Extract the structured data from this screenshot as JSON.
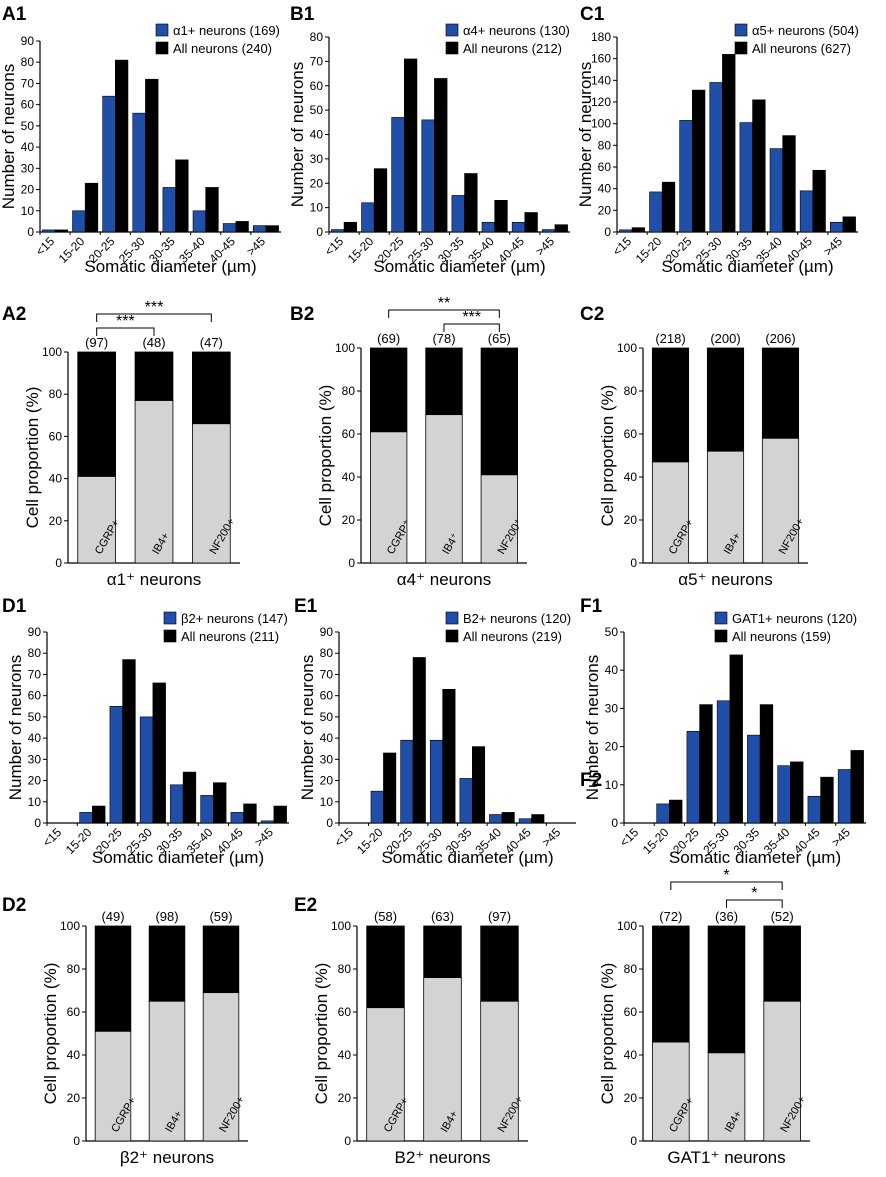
{
  "colors": {
    "subset": "#1f4fa8",
    "all": "#000000",
    "negative": "#000000",
    "positive": "#d3d3d3"
  },
  "chart_data": [
    {
      "id": "A1",
      "label": "A1",
      "type": "bar",
      "xlabel": "Somatic diameter (µm)",
      "ylabel": "Number of neurons",
      "categories": [
        "<15",
        "15-20",
        "20-25",
        "25-30",
        "30-35",
        "35-40",
        "40-45",
        ">45"
      ],
      "ylim": [
        0,
        90
      ],
      "yticks": [
        "0",
        "10",
        "20",
        "30",
        "40",
        "50",
        "60",
        "70",
        "80",
        "90"
      ],
      "ytick_values": [
        0,
        10,
        20,
        30,
        40,
        50,
        60,
        70,
        80,
        90
      ],
      "series": [
        {
          "name": "α1+ neurons (169)",
          "values": [
            1,
            10,
            64,
            56,
            21,
            10,
            4,
            3
          ]
        },
        {
          "name": "All neurons (240)",
          "values": [
            1,
            23,
            81,
            72,
            34,
            21,
            5,
            3
          ]
        }
      ]
    },
    {
      "id": "B1",
      "label": "B1",
      "type": "bar",
      "xlabel": "Somatic diameter (µm)",
      "ylabel": "Number of neurons",
      "categories": [
        "<15",
        "15-20",
        "20-25",
        "25-30",
        "30-35",
        "35-40",
        "40-45",
        ">45"
      ],
      "ylim": [
        0,
        80
      ],
      "yticks": [
        "0",
        "10",
        "20",
        "30",
        "40",
        "50",
        "60",
        "70",
        "80"
      ],
      "ytick_values": [
        0,
        10,
        20,
        30,
        40,
        50,
        60,
        70,
        80
      ],
      "series": [
        {
          "name": "α4+ neurons (130)",
          "values": [
            1,
            12,
            47,
            46,
            15,
            4,
            4,
            1
          ]
        },
        {
          "name": "All neurons (212)",
          "values": [
            4,
            26,
            71,
            63,
            24,
            13,
            8,
            3
          ]
        }
      ]
    },
    {
      "id": "C1",
      "label": "C1",
      "type": "bar",
      "xlabel": "Somatic diameter (µm)",
      "ylabel": "Number of neurons",
      "categories": [
        "<15",
        "15-20",
        "20-25",
        "25-30",
        "30-35",
        "35-40",
        "40-45",
        ">45"
      ],
      "ylim": [
        0,
        180
      ],
      "yticks": [
        "0",
        "20",
        "40",
        "60",
        "80",
        "100",
        "120",
        "140",
        "160",
        "180"
      ],
      "ytick_values": [
        0,
        20,
        40,
        60,
        80,
        100,
        120,
        140,
        160,
        180
      ],
      "series": [
        {
          "name": "α5+ neurons (504)",
          "values": [
            2,
            37,
            103,
            138,
            101,
            77,
            38,
            9
          ]
        },
        {
          "name": "All neurons (627)",
          "values": [
            4,
            46,
            131,
            164,
            122,
            89,
            57,
            14
          ]
        }
      ]
    },
    {
      "id": "A2",
      "label": "A2",
      "type": "stacked_bar",
      "xlabel": "α1⁺ neurons",
      "ylabel": "Cell proportion (%)",
      "categories": [
        "CGRP+",
        "IB4+",
        "NF200+"
      ],
      "counts": [
        "(97)",
        "(48)",
        "(47)"
      ],
      "positive_percent": [
        41,
        77,
        66
      ],
      "ylim": [
        0,
        100
      ],
      "yticks": [
        "0",
        "20",
        "40",
        "60",
        "80",
        "100"
      ],
      "ytick_values": [
        0,
        20,
        40,
        60,
        80,
        100
      ],
      "significance": [
        {
          "from": 0,
          "to": 2,
          "label": "***"
        },
        {
          "from": 0,
          "to": 1,
          "label": "***"
        }
      ]
    },
    {
      "id": "B2",
      "label": "B2",
      "type": "stacked_bar",
      "xlabel": "α4⁺ neurons",
      "ylabel": "Cell proportion (%)",
      "categories": [
        "CGRP⁺",
        "IB4⁺",
        "NF200⁺"
      ],
      "counts": [
        "(69)",
        "(78)",
        "(65)"
      ],
      "positive_percent": [
        61,
        69,
        41
      ],
      "ylim": [
        0,
        100
      ],
      "yticks": [
        "0",
        "20",
        "40",
        "60",
        "80",
        "100"
      ],
      "ytick_values": [
        0,
        20,
        40,
        60,
        80,
        100
      ],
      "significance": [
        {
          "from": 0,
          "to": 2,
          "label": "**"
        },
        {
          "from": 1,
          "to": 2,
          "label": "***"
        }
      ]
    },
    {
      "id": "C2",
      "label": "C2",
      "type": "stacked_bar",
      "xlabel": "α5⁺ neurons",
      "ylabel": "Cell proportion (%)",
      "categories": [
        "CGRP+",
        "IB4+",
        "NF200+"
      ],
      "counts": [
        "(218)",
        "(200)",
        "(206)"
      ],
      "positive_percent": [
        47,
        52,
        58
      ],
      "ylim": [
        0,
        100
      ],
      "yticks": [
        "0",
        "20",
        "40",
        "60",
        "80",
        "100"
      ],
      "ytick_values": [
        0,
        20,
        40,
        60,
        80,
        100
      ],
      "significance": []
    },
    {
      "id": "D1",
      "label": "D1",
      "type": "bar",
      "xlabel": "Somatic diameter (µm)",
      "ylabel": "Number of neurons",
      "categories": [
        "<15",
        "15-20",
        "20-25",
        "25-30",
        "30-35",
        "35-40",
        "40-45",
        ">45"
      ],
      "ylim": [
        0,
        90
      ],
      "yticks": [
        "0",
        "10",
        "20",
        "30",
        "40",
        "50",
        "60",
        "70",
        "80",
        "90"
      ],
      "ytick_values": [
        0,
        10,
        20,
        30,
        40,
        50,
        60,
        70,
        80,
        90
      ],
      "series": [
        {
          "name": "β2+ neurons (147)",
          "values": [
            0,
            5,
            55,
            50,
            18,
            13,
            5,
            1
          ]
        },
        {
          "name": "All neurons (211)",
          "values": [
            0,
            8,
            77,
            66,
            24,
            19,
            9,
            8
          ]
        }
      ]
    },
    {
      "id": "E1",
      "label": "E1",
      "type": "bar",
      "xlabel": "Somatic diameter (µm)",
      "ylabel": "Number of neurons",
      "categories": [
        "<15",
        "15-20",
        "20-25",
        "25-30",
        "30-35",
        "35-40",
        "40-45",
        ">45"
      ],
      "ylim": [
        0,
        90
      ],
      "yticks": [
        "0",
        "10",
        "20",
        "30",
        "40",
        "50",
        "60",
        "70",
        "80",
        "90"
      ],
      "ytick_values": [
        0,
        10,
        20,
        30,
        40,
        50,
        60,
        70,
        80,
        90
      ],
      "series": [
        {
          "name": "B2+ neurons (120)",
          "values": [
            0,
            15,
            39,
            39,
            21,
            4,
            2,
            0
          ]
        },
        {
          "name": "All neurons (219)",
          "values": [
            0,
            33,
            78,
            63,
            36,
            5,
            4,
            0
          ]
        }
      ]
    },
    {
      "id": "F1",
      "label": "F1",
      "type": "bar",
      "xlabel": "Somatic diameter (µm)",
      "ylabel": "Number of neurons",
      "categories": [
        "<15",
        "15-20",
        "20-25",
        "25-30",
        "30-35",
        "35-40",
        "40-45",
        ">45"
      ],
      "ylim": [
        0,
        50
      ],
      "yticks": [
        "0",
        "10",
        "20",
        "30",
        "40",
        "50"
      ],
      "ytick_values": [
        0,
        10,
        20,
        30,
        40,
        50
      ],
      "series": [
        {
          "name": "GAT1+ neurons (120)",
          "values": [
            0,
            5,
            24,
            32,
            23,
            15,
            7,
            14
          ]
        },
        {
          "name": "All neurons (159)",
          "values": [
            0,
            6,
            31,
            44,
            31,
            16,
            12,
            19
          ]
        }
      ]
    },
    {
      "id": "D2",
      "label": "D2",
      "type": "stacked_bar",
      "xlabel": "β2⁺ neurons",
      "ylabel": "Cell proportion (%)",
      "categories": [
        "CGRP+",
        "IB4+",
        "NF200+"
      ],
      "counts": [
        "(49)",
        "(98)",
        "(59)"
      ],
      "positive_percent": [
        51,
        65,
        69
      ],
      "ylim": [
        0,
        100
      ],
      "yticks": [
        "0",
        "20",
        "40",
        "60",
        "80",
        "100"
      ],
      "ytick_values": [
        0,
        20,
        40,
        60,
        80,
        100
      ],
      "significance": []
    },
    {
      "id": "E2",
      "label": "E2",
      "type": "stacked_bar",
      "xlabel": "B2⁺ neurons",
      "ylabel": "Cell proportion (%)",
      "categories": [
        "CGRP+",
        "IB4+",
        "NF200+"
      ],
      "counts": [
        "(58)",
        "(63)",
        "(97)"
      ],
      "positive_percent": [
        62,
        76,
        65
      ],
      "ylim": [
        0,
        100
      ],
      "yticks": [
        "0",
        "20",
        "40",
        "60",
        "80",
        "100"
      ],
      "ytick_values": [
        0,
        20,
        40,
        60,
        80,
        100
      ],
      "significance": []
    },
    {
      "id": "F2",
      "label": "F2",
      "type": "stacked_bar",
      "xlabel": "GAT1⁺ neurons",
      "ylabel": "Cell proportion (%)",
      "categories": [
        "CGRP+",
        "IB4+",
        "NF200+"
      ],
      "counts": [
        "(72)",
        "(36)",
        "(52)"
      ],
      "positive_percent": [
        46,
        41,
        65
      ],
      "ylim": [
        0,
        100
      ],
      "yticks": [
        "0",
        "20",
        "40",
        "60",
        "80",
        "100"
      ],
      "ytick_values": [
        0,
        20,
        40,
        60,
        80,
        100
      ],
      "significance": [
        {
          "from": 0,
          "to": 2,
          "label": "*"
        },
        {
          "from": 1,
          "to": 2,
          "label": "*"
        }
      ]
    }
  ]
}
